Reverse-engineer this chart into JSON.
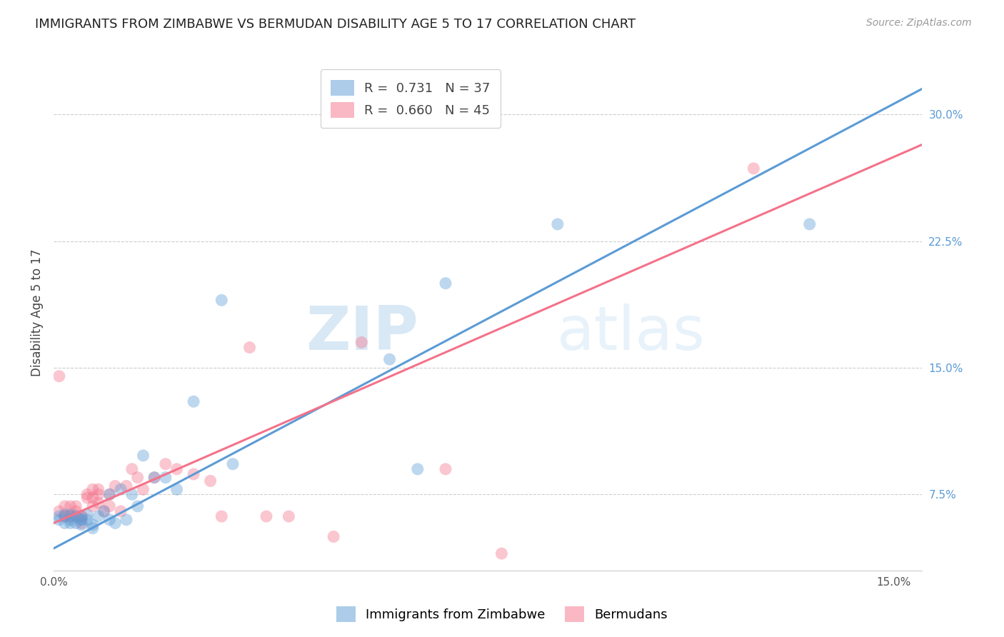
{
  "title": "IMMIGRANTS FROM ZIMBABWE VS BERMUDAN DISABILITY AGE 5 TO 17 CORRELATION CHART",
  "source": "Source: ZipAtlas.com",
  "ylabel": "Disability Age 5 to 17",
  "xlim": [
    0.0,
    0.155
  ],
  "ylim": [
    0.03,
    0.335
  ],
  "xticks": [
    0.0,
    0.025,
    0.05,
    0.075,
    0.1,
    0.125,
    0.15
  ],
  "xtick_labels": [
    "0.0%",
    "",
    "",
    "",
    "",
    "",
    "15.0%"
  ],
  "yticks_right": [
    0.075,
    0.15,
    0.225,
    0.3
  ],
  "ytick_labels_right": [
    "7.5%",
    "15.0%",
    "22.5%",
    "30.0%"
  ],
  "legend_r1": "R =  0.731",
  "legend_n1": "N = 37",
  "legend_r2": "R =  0.660",
  "legend_n2": "N = 45",
  "color_blue": "#5b9bd5",
  "color_pink": "#f4728a",
  "watermark_zip": "ZIP",
  "watermark_atlas": "atlas",
  "blue_scatter_x": [
    0.001,
    0.001,
    0.002,
    0.002,
    0.003,
    0.003,
    0.003,
    0.004,
    0.004,
    0.005,
    0.005,
    0.005,
    0.006,
    0.006,
    0.007,
    0.007,
    0.008,
    0.009,
    0.01,
    0.01,
    0.011,
    0.012,
    0.013,
    0.014,
    0.015,
    0.016,
    0.018,
    0.02,
    0.022,
    0.025,
    0.03,
    0.032,
    0.06,
    0.065,
    0.07,
    0.09,
    0.135
  ],
  "blue_scatter_y": [
    0.06,
    0.062,
    0.058,
    0.063,
    0.058,
    0.06,
    0.063,
    0.058,
    0.062,
    0.06,
    0.06,
    0.057,
    0.063,
    0.06,
    0.057,
    0.055,
    0.062,
    0.065,
    0.06,
    0.075,
    0.058,
    0.078,
    0.06,
    0.075,
    0.068,
    0.098,
    0.085,
    0.085,
    0.078,
    0.13,
    0.19,
    0.093,
    0.155,
    0.09,
    0.2,
    0.235,
    0.235
  ],
  "pink_scatter_x": [
    0.001,
    0.001,
    0.002,
    0.002,
    0.002,
    0.003,
    0.003,
    0.003,
    0.004,
    0.004,
    0.004,
    0.005,
    0.005,
    0.005,
    0.006,
    0.006,
    0.007,
    0.007,
    0.007,
    0.008,
    0.008,
    0.008,
    0.009,
    0.01,
    0.01,
    0.011,
    0.012,
    0.013,
    0.014,
    0.015,
    0.016,
    0.018,
    0.02,
    0.022,
    0.025,
    0.028,
    0.03,
    0.035,
    0.038,
    0.042,
    0.05,
    0.055,
    0.07,
    0.08,
    0.125
  ],
  "pink_scatter_y": [
    0.065,
    0.145,
    0.062,
    0.068,
    0.062,
    0.068,
    0.062,
    0.062,
    0.068,
    0.065,
    0.062,
    0.062,
    0.058,
    0.062,
    0.075,
    0.073,
    0.073,
    0.068,
    0.078,
    0.075,
    0.07,
    0.078,
    0.065,
    0.068,
    0.075,
    0.08,
    0.065,
    0.08,
    0.09,
    0.085,
    0.078,
    0.085,
    0.093,
    0.09,
    0.087,
    0.083,
    0.062,
    0.162,
    0.062,
    0.062,
    0.05,
    0.165,
    0.09,
    0.04,
    0.268
  ],
  "blue_line_x": [
    0.0,
    0.155
  ],
  "blue_line_y": [
    0.043,
    0.315
  ],
  "pink_line_x": [
    0.0,
    0.155
  ],
  "pink_line_y": [
    0.058,
    0.282
  ],
  "legend_fontsize": 13,
  "title_fontsize": 13,
  "axis_label_fontsize": 12,
  "tick_fontsize": 11
}
